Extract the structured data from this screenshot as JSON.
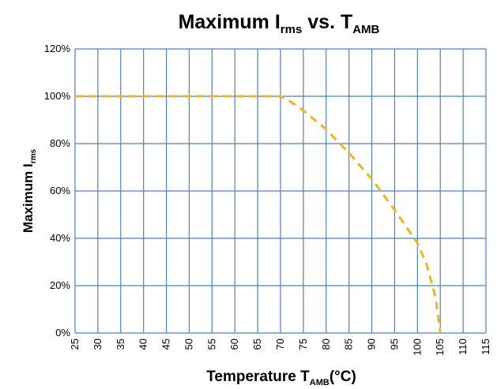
{
  "chart_data": {
    "type": "line",
    "title": {
      "main": "Maximum I",
      "sub1": "rms",
      "mid": " vs. T",
      "sub2": "AMB"
    },
    "xlabel": {
      "main": "Temperature T",
      "sub": "AMB",
      "tail": "(°C)"
    },
    "ylabel": {
      "main": "Maximum I",
      "sub": "rms"
    },
    "xlim": [
      25,
      115
    ],
    "ylim": [
      0,
      120
    ],
    "x_ticks": [
      25,
      30,
      35,
      40,
      45,
      50,
      55,
      60,
      65,
      70,
      75,
      80,
      85,
      90,
      95,
      100,
      105,
      110,
      115
    ],
    "y_ticks": [
      0,
      20,
      40,
      60,
      80,
      100,
      120
    ],
    "y_tick_labels": [
      "0%",
      "20%",
      "40%",
      "60%",
      "80%",
      "100%",
      "120%"
    ],
    "grid": true,
    "series": [
      {
        "style": "dashed",
        "color": "#F0B429",
        "x": [
          25,
          70,
          72,
          75,
          80,
          85,
          90,
          95,
          100,
          102,
          104,
          105
        ],
        "y": [
          100,
          100,
          98,
          94,
          86,
          76,
          65,
          52,
          38,
          29,
          15,
          0
        ]
      }
    ]
  },
  "colors": {
    "grid": "#4F81BD",
    "line": "#F0B429"
  }
}
